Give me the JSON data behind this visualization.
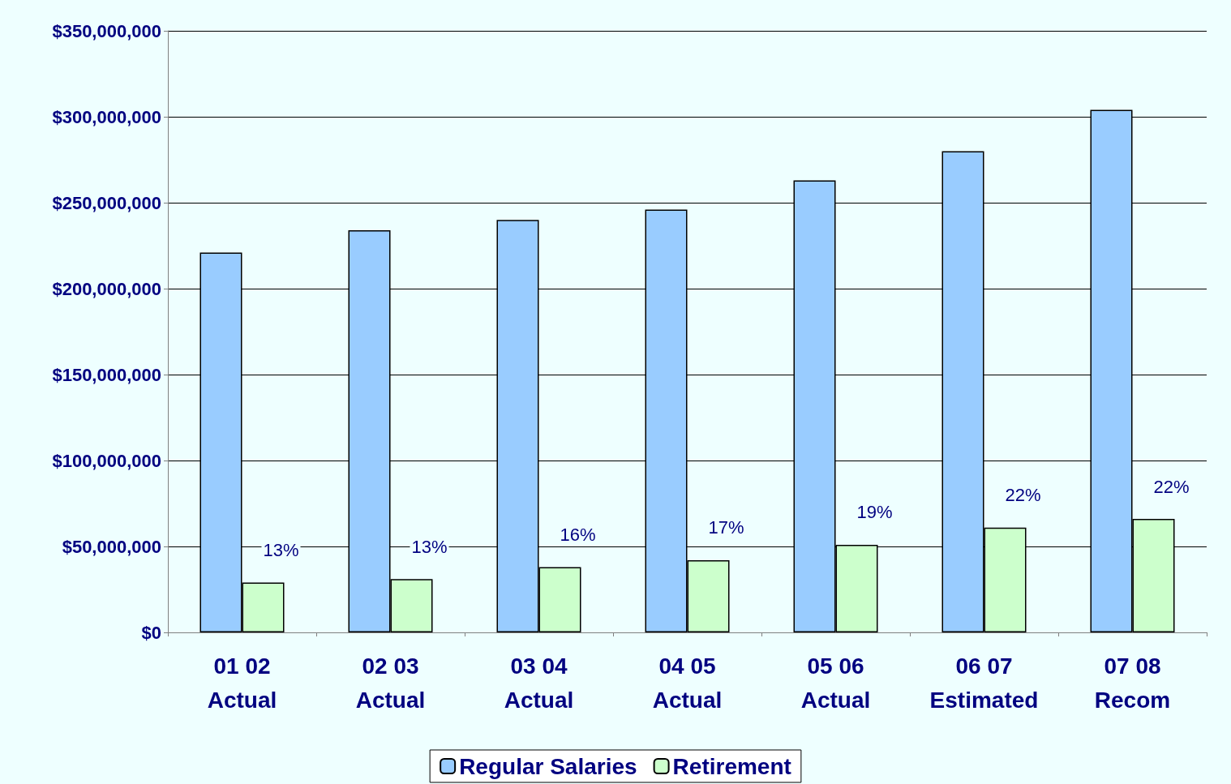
{
  "chart_data": {
    "type": "bar",
    "categories": [
      "01 02\nActual",
      "02 03\nActual",
      "03 04\nActual",
      "04 05\nActual",
      "05 06\nActual",
      "06 07\nEstimated",
      "07 08\nRecom"
    ],
    "series": [
      {
        "name": "Regular Salaries",
        "color": "#99ccff",
        "values": [
          221000000,
          234000000,
          240000000,
          246000000,
          263000000,
          280000000,
          304000000
        ]
      },
      {
        "name": "Retirement",
        "color": "#ccffcc",
        "values": [
          29000000,
          31000000,
          38000000,
          42000000,
          51000000,
          61000000,
          66000000
        ]
      }
    ],
    "annotations": [
      {
        "text": "13%",
        "x": "01 02\nActual",
        "y": 29000000
      },
      {
        "text": "13%",
        "x": "02 03\nActual",
        "y": 31000000
      },
      {
        "text": "16%",
        "x": "03 04\nActual",
        "y": 38000000
      },
      {
        "text": "17%",
        "x": "04 05\nActual",
        "y": 42000000
      },
      {
        "text": "19%",
        "x": "05 06\nActual",
        "y": 51000000
      },
      {
        "text": "22%",
        "x": "06 07\nEstimated",
        "y": 61000000
      },
      {
        "text": "22%",
        "x": "07 08\nRecom",
        "y": 66000000
      }
    ],
    "ylim": [
      0,
      350000000
    ],
    "yticks": [
      {
        "value": 0,
        "label": "$0"
      },
      {
        "value": 50000000,
        "label": "$50,000,000"
      },
      {
        "value": 100000000,
        "label": "$100,000,000"
      },
      {
        "value": 150000000,
        "label": "$150,000,000"
      },
      {
        "value": 200000000,
        "label": "$200,000,000"
      },
      {
        "value": 250000000,
        "label": "$250,000,000"
      },
      {
        "value": 300000000,
        "label": "$300,000,000"
      },
      {
        "value": 350000000,
        "label": "$350,000,000"
      }
    ],
    "grid": "y",
    "legend": "bottom"
  }
}
